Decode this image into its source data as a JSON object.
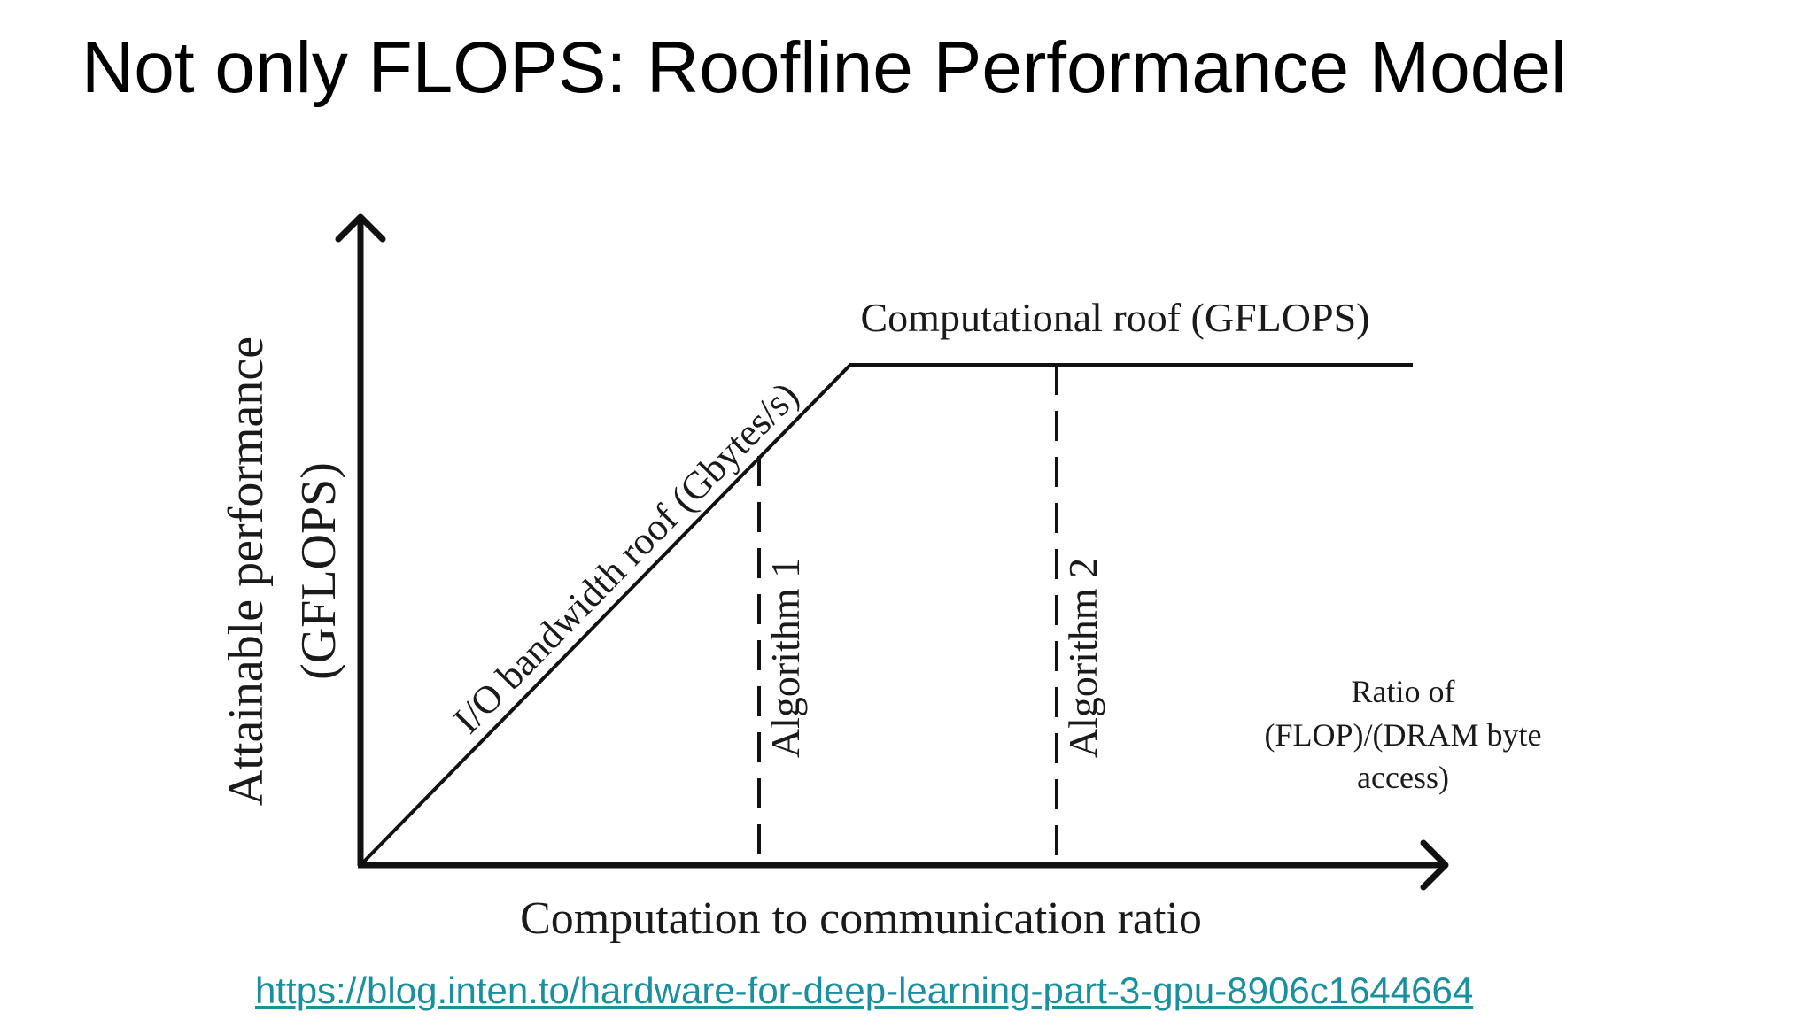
{
  "slide": {
    "title": "Not only FLOPS: Roofline Performance Model",
    "link": "https://blog.inten.to/hardware-for-deep-learning-part-3-gpu-8906c1644664"
  },
  "diagram": {
    "y_axis_label_line1": "Attainable performance",
    "y_axis_label_line2": "(GFLOPS)",
    "x_axis_label": "Computation to communication ratio",
    "bandwidth_roof_label": "I/O bandwidth roof (Gbytes/s)",
    "computational_roof_label": "Computational roof (GFLOPS)",
    "algorithm1_label": "Algorithm 1",
    "algorithm2_label": "Algorithm 2",
    "ratio_label_line1": "Ratio of",
    "ratio_label_line2": "(FLOP)/(DRAM byte",
    "ratio_label_line3": "access)"
  },
  "colors": {
    "line": "#111111",
    "link": "#1a8fa0"
  }
}
